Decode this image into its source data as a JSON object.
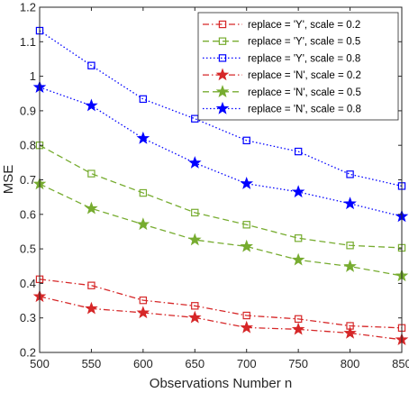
{
  "chart_data": {
    "type": "line",
    "title": "",
    "xlabel": "Observations Number n",
    "ylabel": "MSE",
    "x": [
      500,
      550,
      600,
      650,
      700,
      750,
      800,
      850
    ],
    "xlim": [
      500,
      850
    ],
    "ylim": [
      0.2,
      1.2
    ],
    "xticks": [
      "500",
      "550",
      "600",
      "650",
      "700",
      "750",
      "800",
      "850"
    ],
    "yticks": [
      "0.2",
      "0.3",
      "0.4",
      "0.5",
      "0.6",
      "0.7",
      "0.8",
      "0.9",
      "1",
      "1.1",
      "1.2"
    ],
    "grid": false,
    "legend_position": "top-right",
    "series": [
      {
        "name": "replace = 'Y', scale = 0.2",
        "values": [
          0.412,
          0.394,
          0.351,
          0.335,
          0.307,
          0.297,
          0.277,
          0.271
        ],
        "color": "#d62728",
        "dash": "dashdot",
        "marker": "square"
      },
      {
        "name": "replace = 'Y', scale = 0.5",
        "values": [
          0.8,
          0.718,
          0.662,
          0.605,
          0.57,
          0.531,
          0.51,
          0.503
        ],
        "color": "#77ac30",
        "dash": "dashed",
        "marker": "square"
      },
      {
        "name": "replace = 'Y', scale = 0.8",
        "values": [
          1.132,
          1.031,
          0.934,
          0.877,
          0.814,
          0.782,
          0.716,
          0.682
        ],
        "color": "#0000ff",
        "dash": "dotted",
        "marker": "square"
      },
      {
        "name": "replace = 'N', scale = 0.2",
        "values": [
          0.362,
          0.327,
          0.315,
          0.301,
          0.272,
          0.267,
          0.256,
          0.237
        ],
        "color": "#d62728",
        "dash": "dashdot",
        "marker": "star"
      },
      {
        "name": "replace = 'N', scale = 0.5",
        "values": [
          0.688,
          0.617,
          0.571,
          0.526,
          0.507,
          0.468,
          0.449,
          0.422
        ],
        "color": "#77ac30",
        "dash": "dashed",
        "marker": "star"
      },
      {
        "name": "replace = 'N', scale = 0.8",
        "values": [
          0.968,
          0.915,
          0.82,
          0.749,
          0.689,
          0.665,
          0.631,
          0.594
        ],
        "color": "#0000ff",
        "dash": "dotted",
        "marker": "star"
      }
    ]
  }
}
